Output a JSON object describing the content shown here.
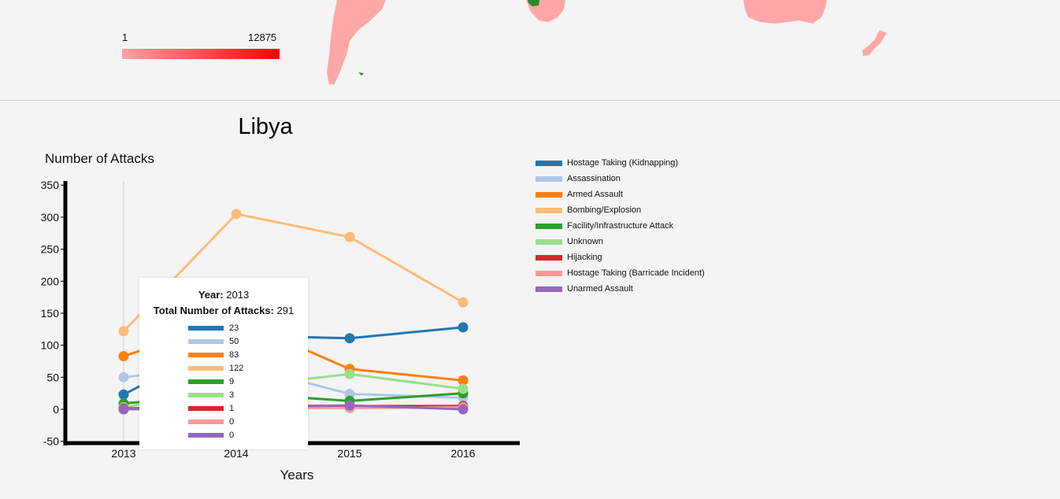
{
  "map": {
    "scale_min_label": "1",
    "scale_max_label": "12875",
    "scale_color_low": "#f9a3a3",
    "scale_color_high": "#ff0000",
    "land_color": "#ffa7a7",
    "selected_color": "#2a8a2a"
  },
  "chart_data": {
    "type": "line",
    "title": "Libya",
    "ylabel": "Number of Attacks",
    "xlabel": "Years",
    "x": [
      2013,
      2014,
      2015,
      2016
    ],
    "x_tick_labels": [
      "2013",
      "2014",
      "2015",
      "2016"
    ],
    "ylim": [
      -50,
      350
    ],
    "y_ticks": [
      -50,
      0,
      50,
      100,
      150,
      200,
      250,
      300,
      350
    ],
    "hover_year": 2013,
    "series": [
      {
        "name": "Hostage Taking (Kidnapping)",
        "color": "#1f77b4",
        "values": [
          23,
          115,
          111,
          128
        ]
      },
      {
        "name": "Assassination",
        "color": "#aec7e8",
        "values": [
          50,
          70,
          24,
          18
        ]
      },
      {
        "name": "Armed Assault",
        "color": "#ff7f0e",
        "values": [
          83,
          140,
          63,
          45
        ]
      },
      {
        "name": "Bombing/Explosion",
        "color": "#ffbb78",
        "values": [
          122,
          305,
          269,
          167
        ]
      },
      {
        "name": "Facility/Infrastructure Attack",
        "color": "#2ca02c",
        "values": [
          9,
          25,
          13,
          25
        ]
      },
      {
        "name": "Unknown",
        "color": "#98df8a",
        "values": [
          3,
          35,
          55,
          32
        ]
      },
      {
        "name": "Hijacking",
        "color": "#d62728",
        "values": [
          1,
          6,
          5,
          5
        ]
      },
      {
        "name": "Hostage Taking (Barricade Incident)",
        "color": "#ff9896",
        "values": [
          0,
          2,
          2,
          3
        ]
      },
      {
        "name": "Unarmed Assault",
        "color": "#9467bd",
        "values": [
          0,
          3,
          6,
          0
        ]
      }
    ]
  },
  "tooltip": {
    "year_label": "Year:",
    "year_value": "2013",
    "total_label": "Total Number of Attacks:",
    "total_value": "291",
    "values": [
      "23",
      "50",
      "83",
      "122",
      "9",
      "3",
      "1",
      "0",
      "0"
    ]
  }
}
